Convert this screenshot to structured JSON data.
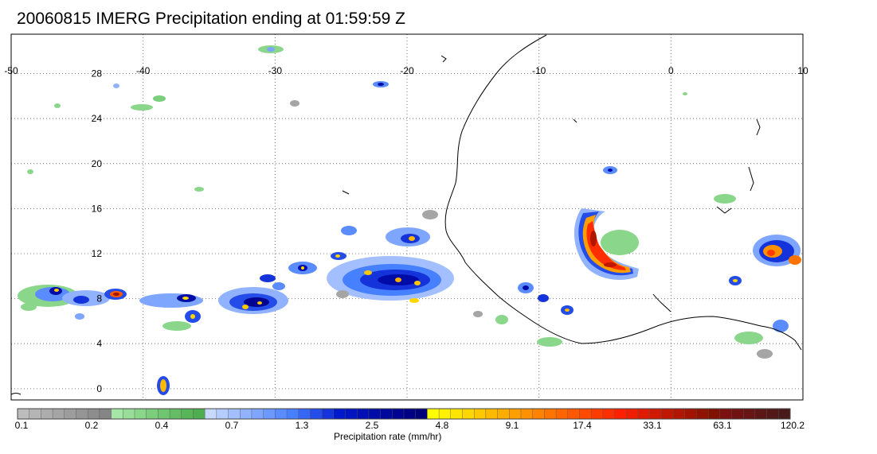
{
  "title": "20060815 IMERG Precipitation ending at 01:59:59 Z",
  "map": {
    "lon_range": [
      -50,
      10
    ],
    "lat_range": [
      -1,
      31.5
    ],
    "lon_ticks": [
      "-50",
      "-40",
      "-30",
      "-20",
      "-10",
      "0",
      "10"
    ],
    "lat_ticks": [
      "28",
      "24",
      "20",
      "16",
      "12",
      "8",
      "4",
      "0"
    ],
    "gridlines": "dotted",
    "coastline_color": "#000000"
  },
  "colorbar": {
    "axis_title": "Precipitation rate (mm/hr)",
    "tick_labels": [
      "0.1",
      "0.2",
      "0.4",
      "0.7",
      "1.3",
      "2.5",
      "4.8",
      "9.1",
      "17.4",
      "33.1",
      "63.1",
      "120.2"
    ],
    "colors": [
      "#bdbdbd",
      "#b5b5b5",
      "#adadad",
      "#a5a5a5",
      "#9d9d9d",
      "#959595",
      "#8d8d8d",
      "#858585",
      "#a6e6a6",
      "#98de98",
      "#8ad68a",
      "#7ccd7c",
      "#70c570",
      "#64bd64",
      "#58b558",
      "#4ead4e",
      "#c7d9ff",
      "#b5ccff",
      "#a3bfff",
      "#91b2ff",
      "#7fa6ff",
      "#6c99ff",
      "#5a8cff",
      "#4780ff",
      "#3566f5",
      "#244ce8",
      "#1433db",
      "#0019cc",
      "#0014c0",
      "#0010b4",
      "#000ca8",
      "#00089c",
      "#000490",
      "#000084",
      "#000078",
      "#ffff00",
      "#fff200",
      "#ffe400",
      "#ffd600",
      "#ffc800",
      "#ffba00",
      "#ffac00",
      "#ff9e00",
      "#ff9000",
      "#ff8200",
      "#ff7400",
      "#ff6600",
      "#ff5800",
      "#ff4a00",
      "#ff3c00",
      "#ff2e00",
      "#ff2000",
      "#f01e00",
      "#e01c00",
      "#d01a00",
      "#c01800",
      "#b01600",
      "#a01400",
      "#901200",
      "#801000",
      "#7a1010",
      "#701212",
      "#661414",
      "#5c1616",
      "#521818",
      "#481a1a"
    ]
  }
}
